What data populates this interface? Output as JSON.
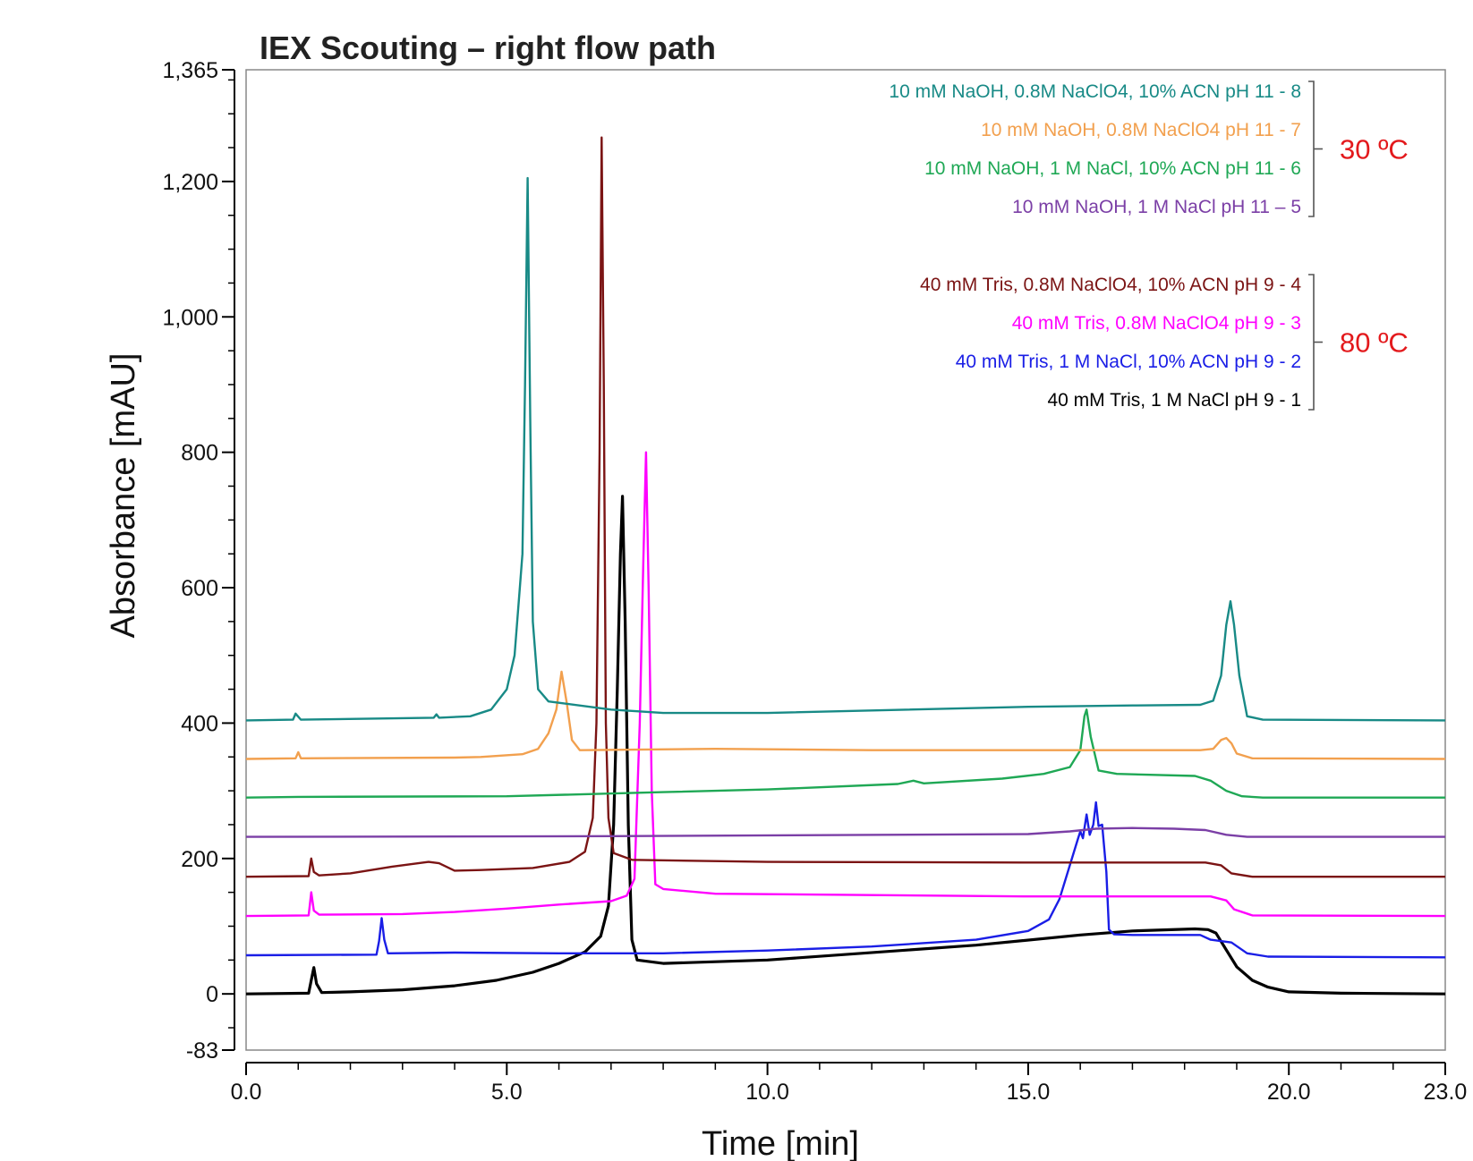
{
  "chart_data": {
    "type": "line",
    "title": "IEX Scouting – right flow path",
    "xlabel": "Time [min]",
    "ylabel": "Absorbance [mAU]",
    "xlim": [
      0,
      23
    ],
    "ylim": [
      -83,
      1365
    ],
    "x_ticks": [
      "0.0",
      "5.0",
      "10.0",
      "15.0",
      "20.0",
      "23.0"
    ],
    "y_ticks": [
      "1,365",
      "1,200",
      "1,000",
      "800",
      "600",
      "400",
      "200",
      "0",
      "-83"
    ],
    "grid": false,
    "legend_position": "top-right",
    "groups": [
      {
        "label": "30 ºC",
        "color": "#e3191c",
        "members": [
          "10 mM NaOH,  0.8M NaClO4, 10% ACN pH 11 - 8",
          "10 mM NaOH,   0.8M NaClO4 pH 11  - 7",
          "10 mM NaOH,  1 M NaCl,  10% ACN pH 11  - 6",
          "10 mM NaOH,  1 M NaCl pH 11 – 5"
        ]
      },
      {
        "label": "80 ºC",
        "color": "#e3191c",
        "members": [
          "40 mM Tris, 0.8M NaClO4, 10% ACN pH 9 - 4",
          "40 mM Tris,  0.8M NaClO4 pH 9 - 3",
          "40 mM Tris, 1 M NaCl, 10% ACN pH 9 - 2",
          "40 mM Tris, 1 M NaCl pH 9 - 1"
        ]
      }
    ],
    "series": [
      {
        "name": "10 mM NaOH,  0.8M NaClO4, 10% ACN pH 11 - 8",
        "color": "#188a86",
        "points": [
          [
            0,
            404
          ],
          [
            0.9,
            405
          ],
          [
            0.95,
            414
          ],
          [
            1.05,
            405
          ],
          [
            3.6,
            408
          ],
          [
            3.65,
            413
          ],
          [
            3.7,
            408
          ],
          [
            4.3,
            410
          ],
          [
            4.7,
            420
          ],
          [
            5.0,
            450
          ],
          [
            5.15,
            500
          ],
          [
            5.25,
            600
          ],
          [
            5.3,
            650
          ],
          [
            5.35,
            900
          ],
          [
            5.4,
            1205
          ],
          [
            5.45,
            850
          ],
          [
            5.5,
            550
          ],
          [
            5.6,
            450
          ],
          [
            5.8,
            432
          ],
          [
            7.0,
            420
          ],
          [
            8.0,
            415
          ],
          [
            10,
            415
          ],
          [
            15,
            424
          ],
          [
            17,
            426
          ],
          [
            18.3,
            427
          ],
          [
            18.55,
            433
          ],
          [
            18.7,
            470
          ],
          [
            18.8,
            545
          ],
          [
            18.88,
            580
          ],
          [
            18.95,
            545
          ],
          [
            19.05,
            470
          ],
          [
            19.2,
            410
          ],
          [
            19.5,
            405
          ],
          [
            23,
            404
          ]
        ]
      },
      {
        "name": "10 mM NaOH,   0.8M NaClO4 pH 11  - 7",
        "color": "#f2a04e",
        "points": [
          [
            0,
            347
          ],
          [
            0.95,
            348
          ],
          [
            1.0,
            357
          ],
          [
            1.05,
            348
          ],
          [
            4.0,
            349
          ],
          [
            4.5,
            350
          ],
          [
            5.3,
            354
          ],
          [
            5.6,
            362
          ],
          [
            5.8,
            385
          ],
          [
            5.95,
            420
          ],
          [
            6.05,
            476
          ],
          [
            6.15,
            430
          ],
          [
            6.25,
            375
          ],
          [
            6.4,
            360
          ],
          [
            9,
            362
          ],
          [
            12,
            360
          ],
          [
            18.3,
            360
          ],
          [
            18.55,
            362
          ],
          [
            18.7,
            375
          ],
          [
            18.8,
            378
          ],
          [
            18.9,
            370
          ],
          [
            19.0,
            355
          ],
          [
            19.3,
            348
          ],
          [
            23,
            347
          ]
        ]
      },
      {
        "name": "10 mM NaOH,  1 M NaCl,  10% ACN pH 11  - 6",
        "color": "#1fa855",
        "points": [
          [
            0,
            290
          ],
          [
            1.0,
            291
          ],
          [
            5,
            292
          ],
          [
            8,
            298
          ],
          [
            10,
            302
          ],
          [
            12.5,
            310
          ],
          [
            12.8,
            315
          ],
          [
            13.0,
            311
          ],
          [
            14.5,
            318
          ],
          [
            15.3,
            325
          ],
          [
            15.8,
            335
          ],
          [
            16.0,
            360
          ],
          [
            16.08,
            410
          ],
          [
            16.12,
            420
          ],
          [
            16.2,
            380
          ],
          [
            16.35,
            330
          ],
          [
            16.7,
            325
          ],
          [
            18.2,
            322
          ],
          [
            18.5,
            315
          ],
          [
            18.8,
            300
          ],
          [
            19.1,
            292
          ],
          [
            19.5,
            290
          ],
          [
            23,
            290
          ]
        ]
      },
      {
        "name": "10 mM NaOH,  1 M NaCl pH 11 – 5",
        "color": "#7b3fa6",
        "points": [
          [
            0,
            232
          ],
          [
            7,
            233
          ],
          [
            15,
            236
          ],
          [
            15.8,
            240
          ],
          [
            16.3,
            244
          ],
          [
            17,
            245
          ],
          [
            17.8,
            244
          ],
          [
            18.4,
            242
          ],
          [
            18.8,
            235
          ],
          [
            19.2,
            232
          ],
          [
            23,
            232
          ]
        ]
      },
      {
        "name": "40 mM Tris, 0.8M NaClO4, 10% ACN pH 9 - 4",
        "color": "#7b1414",
        "points": [
          [
            0,
            173
          ],
          [
            1.2,
            174
          ],
          [
            1.25,
            200
          ],
          [
            1.3,
            180
          ],
          [
            1.4,
            175
          ],
          [
            2.0,
            178
          ],
          [
            2.8,
            188
          ],
          [
            3.5,
            195
          ],
          [
            3.7,
            193
          ],
          [
            4.0,
            182
          ],
          [
            4.5,
            183
          ],
          [
            5.5,
            186
          ],
          [
            6.2,
            195
          ],
          [
            6.5,
            210
          ],
          [
            6.65,
            260
          ],
          [
            6.72,
            400
          ],
          [
            6.78,
            800
          ],
          [
            6.82,
            1265
          ],
          [
            6.86,
            900
          ],
          [
            6.9,
            400
          ],
          [
            6.95,
            260
          ],
          [
            7.05,
            208
          ],
          [
            7.4,
            198
          ],
          [
            10,
            195
          ],
          [
            15,
            194
          ],
          [
            18.4,
            194
          ],
          [
            18.7,
            190
          ],
          [
            18.9,
            178
          ],
          [
            19.3,
            173
          ],
          [
            23,
            173
          ]
        ]
      },
      {
        "name": "40 mM Tris,  0.8M NaClO4 pH 9 - 3",
        "color": "#ff00ff",
        "points": [
          [
            0,
            115
          ],
          [
            1.2,
            116
          ],
          [
            1.25,
            150
          ],
          [
            1.3,
            123
          ],
          [
            1.4,
            117
          ],
          [
            3,
            118
          ],
          [
            4,
            121
          ],
          [
            5,
            126
          ],
          [
            6,
            132
          ],
          [
            7,
            137
          ],
          [
            7.3,
            145
          ],
          [
            7.45,
            170
          ],
          [
            7.55,
            400
          ],
          [
            7.62,
            640
          ],
          [
            7.67,
            800
          ],
          [
            7.72,
            600
          ],
          [
            7.78,
            300
          ],
          [
            7.85,
            162
          ],
          [
            8.0,
            155
          ],
          [
            9,
            148
          ],
          [
            12,
            146
          ],
          [
            15,
            144
          ],
          [
            18.5,
            144
          ],
          [
            18.8,
            138
          ],
          [
            18.95,
            125
          ],
          [
            19.3,
            116
          ],
          [
            23,
            115
          ]
        ]
      },
      {
        "name": "40 mM Tris, 1 M NaCl, 10% ACN pH 9 - 2",
        "color": "#1a1ee6",
        "points": [
          [
            0,
            57
          ],
          [
            2.5,
            58
          ],
          [
            2.55,
            78
          ],
          [
            2.6,
            112
          ],
          [
            2.65,
            80
          ],
          [
            2.72,
            60
          ],
          [
            4,
            61
          ],
          [
            6,
            60
          ],
          [
            8,
            60
          ],
          [
            10,
            64
          ],
          [
            12,
            70
          ],
          [
            14,
            80
          ],
          [
            15,
            93
          ],
          [
            15.4,
            110
          ],
          [
            15.6,
            140
          ],
          [
            15.8,
            190
          ],
          [
            15.95,
            228
          ],
          [
            16.0,
            240
          ],
          [
            16.05,
            230
          ],
          [
            16.12,
            265
          ],
          [
            16.18,
            235
          ],
          [
            16.25,
            250
          ],
          [
            16.3,
            283
          ],
          [
            16.35,
            248
          ],
          [
            16.42,
            250
          ],
          [
            16.5,
            180
          ],
          [
            16.55,
            95
          ],
          [
            16.65,
            88
          ],
          [
            17,
            87
          ],
          [
            18.3,
            87
          ],
          [
            18.5,
            80
          ],
          [
            18.9,
            76
          ],
          [
            19.2,
            60
          ],
          [
            19.6,
            55
          ],
          [
            23,
            54
          ]
        ]
      },
      {
        "name": "40 mM Tris, 1 M NaCl pH 9 - 1",
        "color": "#000000",
        "points": [
          [
            0,
            0
          ],
          [
            1.2,
            1
          ],
          [
            1.25,
            20
          ],
          [
            1.3,
            39
          ],
          [
            1.35,
            15
          ],
          [
            1.45,
            2
          ],
          [
            2,
            3
          ],
          [
            3,
            6
          ],
          [
            4,
            12
          ],
          [
            4.8,
            20
          ],
          [
            5.5,
            32
          ],
          [
            6.0,
            45
          ],
          [
            6.5,
            62
          ],
          [
            6.8,
            85
          ],
          [
            6.95,
            130
          ],
          [
            7.05,
            250
          ],
          [
            7.12,
            450
          ],
          [
            7.18,
            650
          ],
          [
            7.22,
            735
          ],
          [
            7.27,
            550
          ],
          [
            7.33,
            250
          ],
          [
            7.4,
            80
          ],
          [
            7.5,
            50
          ],
          [
            8,
            45
          ],
          [
            10,
            50
          ],
          [
            14,
            72
          ],
          [
            16,
            87
          ],
          [
            17,
            93
          ],
          [
            18.2,
            96
          ],
          [
            18.45,
            95
          ],
          [
            18.6,
            90
          ],
          [
            18.8,
            65
          ],
          [
            19.0,
            40
          ],
          [
            19.3,
            20
          ],
          [
            19.6,
            10
          ],
          [
            20,
            3
          ],
          [
            21,
            1
          ],
          [
            23,
            0
          ]
        ]
      }
    ]
  }
}
